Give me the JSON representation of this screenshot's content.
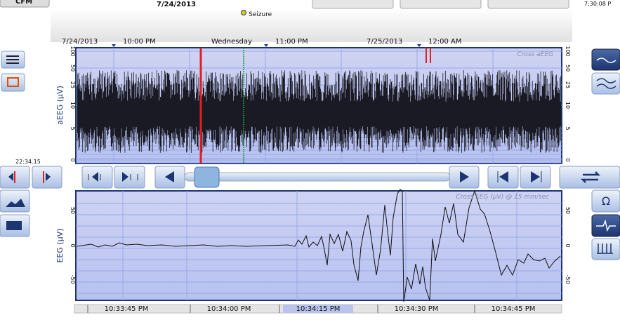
{
  "header": {
    "mode_button": "CFM",
    "date": "7/24/2013",
    "clock": "7:30:08 P",
    "event": "Seizure"
  },
  "timeline": {
    "labels": [
      "7/24/2013",
      "10:00 PM",
      "Wednesday",
      "11:00 PM",
      "7/25/2013",
      "12:00 AM"
    ]
  },
  "aeeg": {
    "axis_label": "aEEG (µV)",
    "title": "Cross aEEG",
    "ticks": [
      "100",
      "50",
      "25",
      "10",
      "5",
      "0"
    ],
    "cursor_time": "22:34.15"
  },
  "eeg": {
    "axis_label": "EEG (µV)",
    "title": "Cross EEG (µV) @ 15 mm/sec",
    "ticks": [
      "50",
      "0",
      "-50"
    ]
  },
  "time_axis": {
    "labels": [
      "10:33:45 PM",
      "10:34:00 PM",
      "10:34:15 PM",
      "10:34:30 PM",
      "10:34:45 PM"
    ]
  },
  "buttons": {
    "omega": "Ω"
  }
}
